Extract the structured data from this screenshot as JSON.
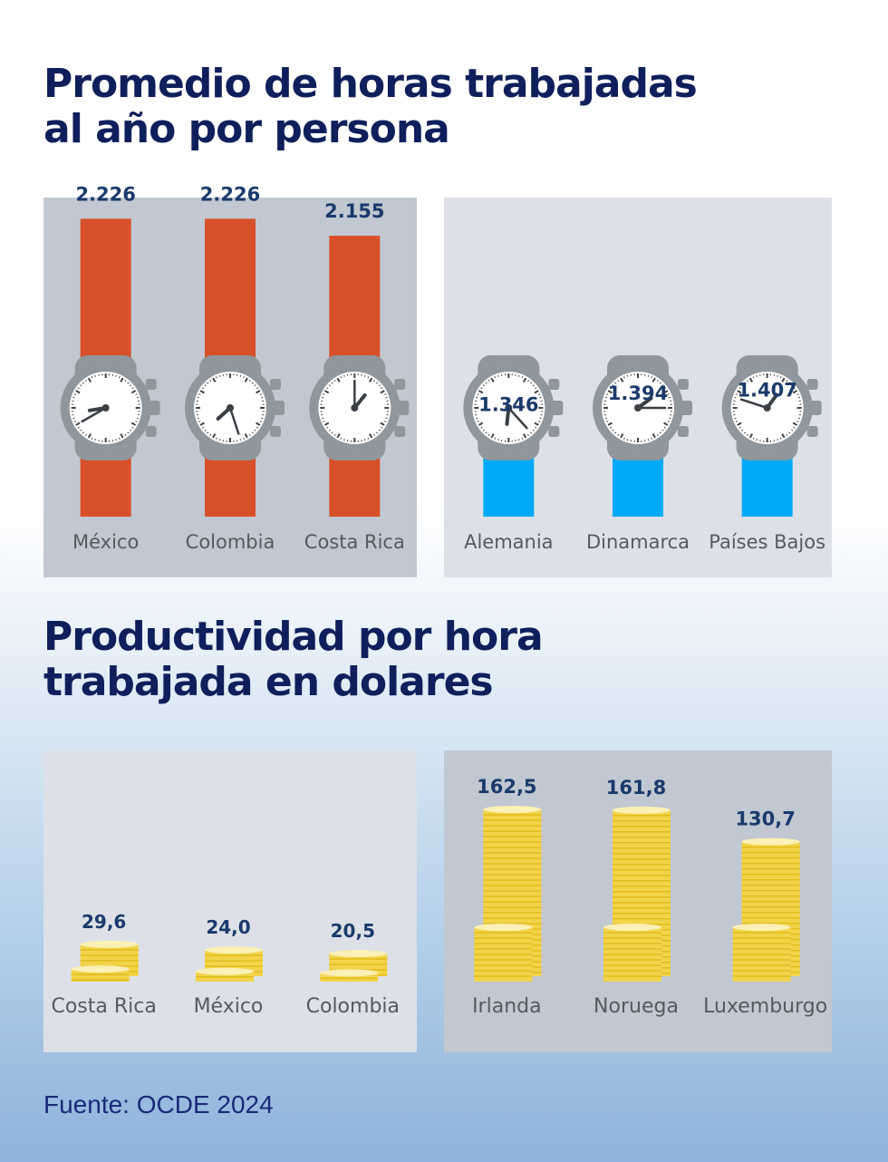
{
  "title_hours": {
    "line1": "Promedio de horas trabajadas",
    "line2": "al año por persona"
  },
  "title_productivity": {
    "line1": "Productividad por hora",
    "line2": "trabajada en dolares"
  },
  "source": "Fuente: OCDE 2024",
  "colors": {
    "title": "#0f1f5c",
    "value": "#1a3a6b",
    "label": "#555a60",
    "panel_dark": "#c1c8d1",
    "panel_light": "#dde1e7",
    "strap_high": "#d8502a",
    "strap_low": "#00aaf8",
    "watch_case": "#8f969c",
    "coin": "#f2d449",
    "coin_edge": "#e2bc1f"
  },
  "chart_data": [
    {
      "type": "bar",
      "title": "Promedio de horas trabajadas al año por persona",
      "unit": "horas",
      "groups": [
        {
          "name": "high",
          "strap_color": "#d8502a",
          "icon": "watch-icon",
          "categories": [
            "México",
            "Colombia",
            "Costa Rica"
          ],
          "values": [
            2226,
            2226,
            2155
          ],
          "labels": [
            "2.226",
            "2.226",
            "2.155"
          ]
        },
        {
          "name": "low",
          "strap_color": "#00aaf8",
          "icon": "watch-icon",
          "categories": [
            "Alemania",
            "Dinamarca",
            "Países Bajos"
          ],
          "values": [
            1346,
            1394,
            1407
          ],
          "labels": [
            "1.346",
            "1.394",
            "1.407"
          ]
        }
      ]
    },
    {
      "type": "bar",
      "title": "Productividad por hora trabajada en dolares",
      "unit": "USD",
      "groups": [
        {
          "name": "low",
          "icon": "coin-stack-icon",
          "categories": [
            "Costa Rica",
            "México",
            "Colombia"
          ],
          "values": [
            29.6,
            24.0,
            20.5
          ],
          "labels": [
            "29,6",
            "24,0",
            "20,5"
          ]
        },
        {
          "name": "high",
          "icon": "coin-stack-icon",
          "categories": [
            "Irlanda",
            "Noruega",
            "Luxemburgo"
          ],
          "values": [
            162.5,
            161.8,
            130.7
          ],
          "labels": [
            "162,5",
            "161,8",
            "130,7"
          ]
        }
      ]
    }
  ]
}
